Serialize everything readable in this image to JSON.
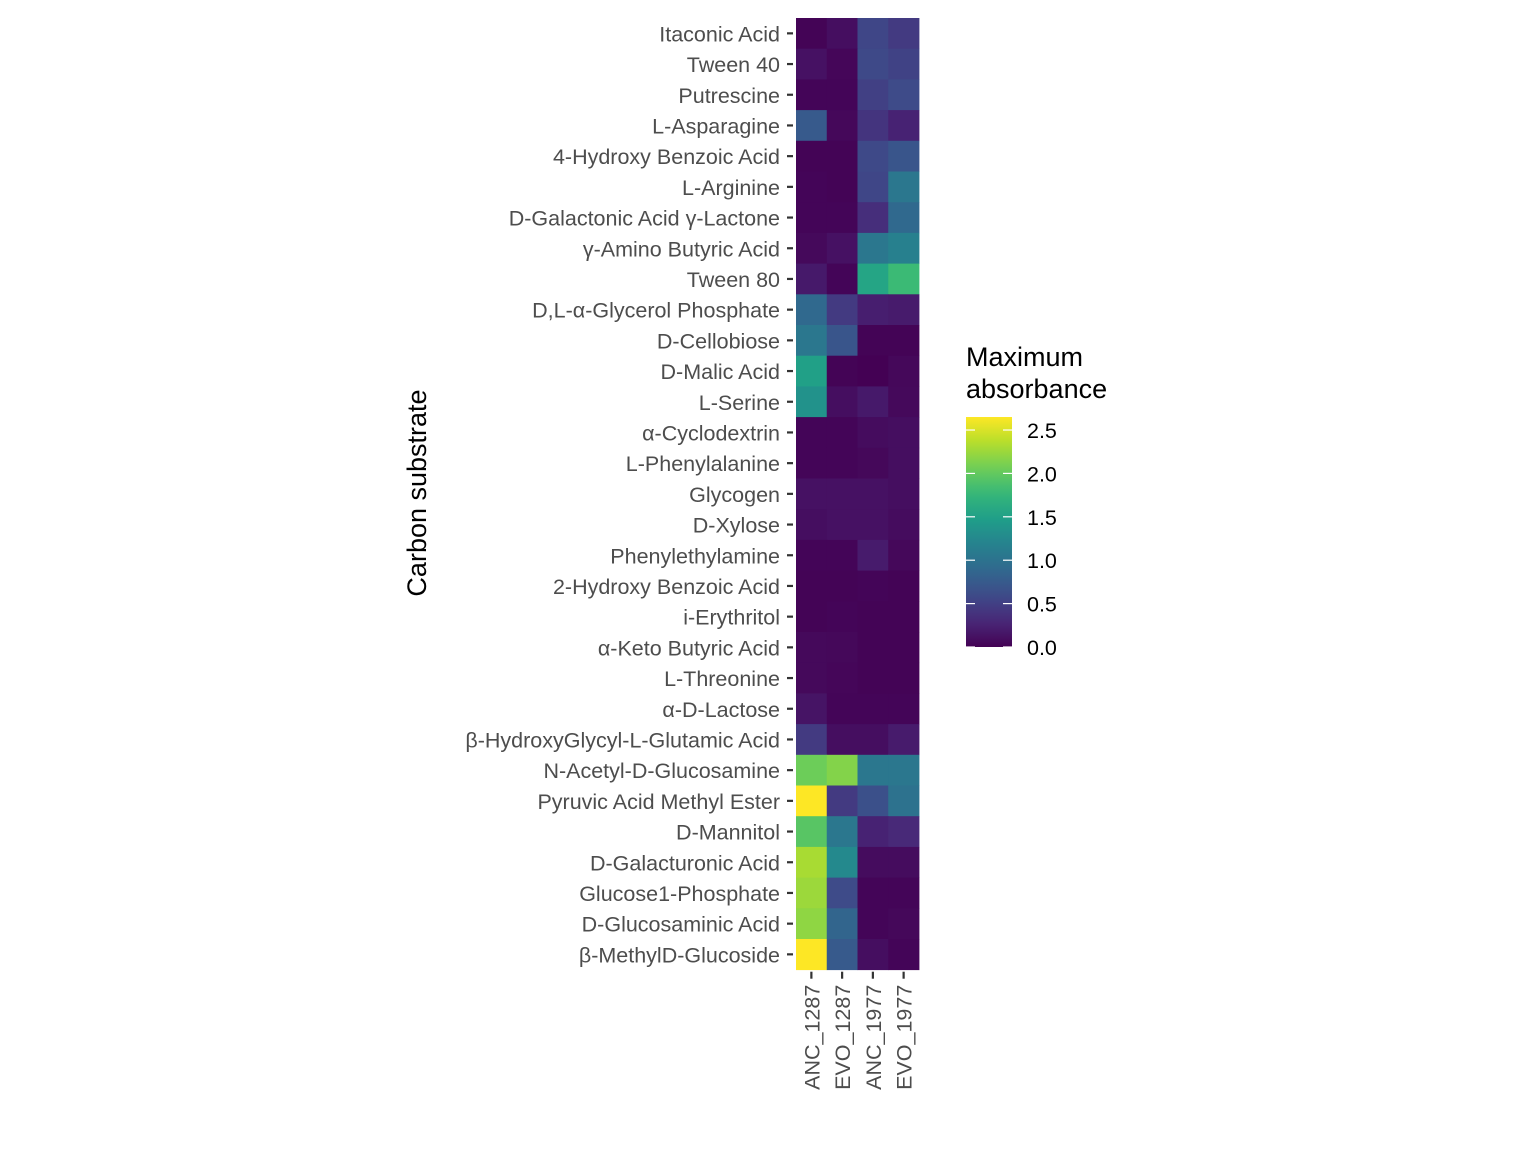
{
  "chart_data": {
    "type": "heatmap",
    "title": "",
    "xlabel": "",
    "ylabel": "Carbon substrate",
    "legend": {
      "title_lines": [
        "Maximum",
        "absorbance"
      ],
      "placement": "right",
      "ticks": [
        0.0,
        0.5,
        1.0,
        1.5,
        2.0,
        2.5
      ],
      "tick_labels": [
        "0.0",
        "0.5",
        "1.0",
        "1.5",
        "2.0",
        "2.5"
      ],
      "range": [
        0.0,
        2.65
      ],
      "colormap": "viridis"
    },
    "columns": [
      "ANC_1287",
      "EVO_1287",
      "ANC_1977",
      "EVO_1977"
    ],
    "rows": [
      "Itaconic Acid",
      "Tween 40",
      "Putrescine",
      "L-Asparagine",
      "4-Hydroxy Benzoic Acid",
      "L-Arginine",
      "D-Galactonic Acid γ-Lactone",
      "γ-Amino Butyric Acid",
      "Tween 80",
      "D,L-α-Glycerol Phosphate",
      "D-Cellobiose",
      "D-Malic Acid",
      "L-Serine",
      "α-Cyclodextrin",
      "L-Phenylalanine",
      "Glycogen",
      "D-Xylose",
      "Phenylethylamine",
      "2-Hydroxy Benzoic Acid",
      "i-Erythritol",
      "α-Keto Butyric Acid",
      "L-Threonine",
      "α-D-Lactose",
      "β-HydroxyGlycyl-L-Glutamic Acid",
      "N-Acetyl-D-Glucosamine",
      "Pyruvic Acid Methyl Ester",
      "D-Mannitol",
      "D-Galacturonic Acid",
      "Glucose1-Phosphate",
      "D-Glucosaminic Acid",
      "β-MethylD-Glucoside"
    ],
    "values": [
      [
        0.02,
        0.1,
        0.55,
        0.45
      ],
      [
        0.12,
        0.04,
        0.58,
        0.52
      ],
      [
        0.03,
        0.03,
        0.5,
        0.6
      ],
      [
        0.75,
        0.05,
        0.4,
        0.25
      ],
      [
        0.02,
        0.02,
        0.58,
        0.7
      ],
      [
        0.03,
        0.02,
        0.55,
        1.05
      ],
      [
        0.03,
        0.03,
        0.35,
        0.9
      ],
      [
        0.06,
        0.12,
        1.05,
        1.15
      ],
      [
        0.18,
        0.03,
        1.55,
        1.8
      ],
      [
        0.9,
        0.45,
        0.22,
        0.2
      ],
      [
        1.05,
        0.7,
        0.02,
        0.02
      ],
      [
        1.5,
        0.02,
        0.0,
        0.05
      ],
      [
        1.35,
        0.1,
        0.18,
        0.06
      ],
      [
        0.03,
        0.03,
        0.08,
        0.1
      ],
      [
        0.03,
        0.03,
        0.05,
        0.1
      ],
      [
        0.12,
        0.12,
        0.12,
        0.1
      ],
      [
        0.1,
        0.12,
        0.12,
        0.08
      ],
      [
        0.03,
        0.03,
        0.2,
        0.05
      ],
      [
        0.02,
        0.02,
        0.03,
        0.02
      ],
      [
        0.02,
        0.03,
        0.02,
        0.02
      ],
      [
        0.06,
        0.05,
        0.02,
        0.02
      ],
      [
        0.06,
        0.04,
        0.02,
        0.02
      ],
      [
        0.14,
        0.03,
        0.03,
        0.03
      ],
      [
        0.45,
        0.1,
        0.1,
        0.2
      ],
      [
        2.05,
        2.15,
        1.05,
        1.05
      ],
      [
        2.65,
        0.45,
        0.65,
        1.0
      ],
      [
        1.95,
        1.05,
        0.25,
        0.3
      ],
      [
        2.3,
        1.25,
        0.08,
        0.08
      ],
      [
        2.25,
        0.6,
        0.03,
        0.03
      ],
      [
        2.2,
        0.85,
        0.03,
        0.05
      ],
      [
        2.65,
        0.75,
        0.1,
        0.03
      ]
    ]
  }
}
